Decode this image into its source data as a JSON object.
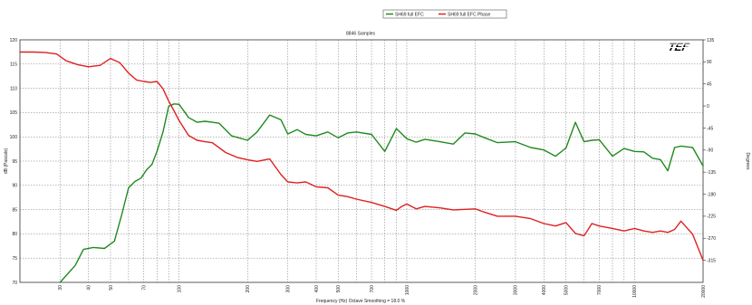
{
  "chart_data": {
    "type": "line",
    "title": "8846 Samples",
    "logo_text": "TEF",
    "xlabel": "Frequency (Hz) Octave Smoothing = 18.0 %",
    "ylabel": "dB (Pascals)",
    "ylabel_right": "Degrees",
    "x_scale": "log",
    "xlim": [
      20,
      20000
    ],
    "ylim": [
      70,
      120
    ],
    "y2lim": [
      -360,
      135
    ],
    "grid": true,
    "legend_position": "top-center",
    "x_ticks": [
      30,
      40,
      50,
      70,
      100,
      200,
      300,
      400,
      500,
      700,
      1000,
      2000,
      3000,
      4000,
      5000,
      7000,
      10000,
      20000
    ],
    "x_tick_labels": [
      "30",
      "40",
      "50",
      "70",
      "100",
      "200",
      "300",
      "400",
      "500",
      "700",
      "1000",
      "2000",
      "3000",
      "4000",
      "5000",
      "7000",
      "10000",
      "20000"
    ],
    "y_ticks": [
      70,
      75,
      80,
      85,
      90,
      95,
      100,
      105,
      110,
      115,
      120
    ],
    "y_tick_labels": [
      "70",
      "75",
      "80",
      "85",
      "90",
      "95",
      "100",
      "105",
      "110",
      "115",
      "120"
    ],
    "y2_ticks": [
      -315,
      -270,
      -225,
      -180,
      -135,
      -90,
      -45,
      0,
      45,
      90,
      135
    ],
    "y2_tick_labels": [
      "-315",
      "-270",
      "-225",
      "-180",
      "-135",
      "-90",
      "-45",
      "0",
      "45",
      "90",
      "135"
    ],
    "series": [
      {
        "name": "SH69 full EFC",
        "axis": "left",
        "color": "#1f8a1f",
        "x": [
          30,
          35,
          38,
          42,
          47,
          52,
          56,
          60,
          64,
          68,
          72,
          76,
          80,
          85,
          90,
          95,
          100,
          110,
          120,
          130,
          140,
          150,
          170,
          200,
          220,
          250,
          280,
          300,
          330,
          360,
          400,
          450,
          500,
          550,
          600,
          700,
          800,
          900,
          1000,
          1100,
          1200,
          1400,
          1600,
          1800,
          2000,
          2200,
          2500,
          3000,
          3500,
          4000,
          4500,
          5000,
          5500,
          6000,
          6500,
          7000,
          8000,
          9000,
          10000,
          11000,
          12000,
          13000,
          14000,
          15000,
          16000,
          18000,
          20000
        ],
        "values": [
          70,
          73.5,
          76.8,
          77.2,
          77,
          78.5,
          84,
          89.5,
          90.8,
          91.5,
          93.2,
          94.3,
          97,
          101,
          106.3,
          106.8,
          106.7,
          104,
          103,
          103.2,
          103,
          102.8,
          100.2,
          99.3,
          101,
          104.5,
          103.5,
          100.6,
          101.5,
          100.5,
          100.2,
          101,
          99.8,
          100.8,
          101,
          100.5,
          97,
          101.7,
          99.6,
          98.9,
          99.5,
          99,
          98.5,
          100.8,
          100.6,
          99.8,
          98.8,
          99,
          97.8,
          97.3,
          96,
          97.7,
          103,
          99,
          99.3,
          99.4,
          96,
          97.6,
          97,
          96.9,
          95.6,
          95.3,
          93,
          97.8,
          98.1,
          97.8,
          94
        ]
      },
      {
        "name": "SH69 full EFC Phase",
        "axis": "right",
        "color": "#e02020",
        "x": [
          20,
          23,
          26,
          29,
          32,
          36,
          40,
          45,
          50,
          55,
          60,
          65,
          70,
          75,
          80,
          85,
          90,
          95,
          100,
          110,
          120,
          130,
          140,
          160,
          180,
          200,
          220,
          250,
          280,
          300,
          330,
          360,
          400,
          450,
          500,
          550,
          600,
          700,
          800,
          900,
          950,
          1000,
          1100,
          1200,
          1400,
          1600,
          1800,
          2000,
          2200,
          2500,
          3000,
          3500,
          4000,
          4500,
          5000,
          5500,
          6000,
          6500,
          7000,
          8000,
          9000,
          10000,
          11000,
          12000,
          13000,
          14000,
          15000,
          16000,
          18000,
          20000
        ],
        "values": [
          110,
          110,
          109,
          106,
          92,
          84,
          80,
          83,
          97,
          88,
          67,
          53,
          50,
          48,
          50,
          35,
          10,
          -10,
          -30,
          -60,
          -70,
          -73,
          -75,
          -95,
          -105,
          -110,
          -113,
          -108,
          -140,
          -155,
          -157,
          -155,
          -165,
          -167,
          -182,
          -185,
          -190,
          -197,
          -205,
          -213,
          -205,
          -200,
          -210,
          -205,
          -208,
          -212,
          -211,
          -210,
          -217,
          -225,
          -225,
          -230,
          -240,
          -245,
          -238,
          -260,
          -265,
          -240,
          -245,
          -250,
          -255,
          -250,
          -255,
          -258,
          -255,
          -258,
          -252,
          -235,
          -262,
          -315
        ]
      }
    ]
  }
}
